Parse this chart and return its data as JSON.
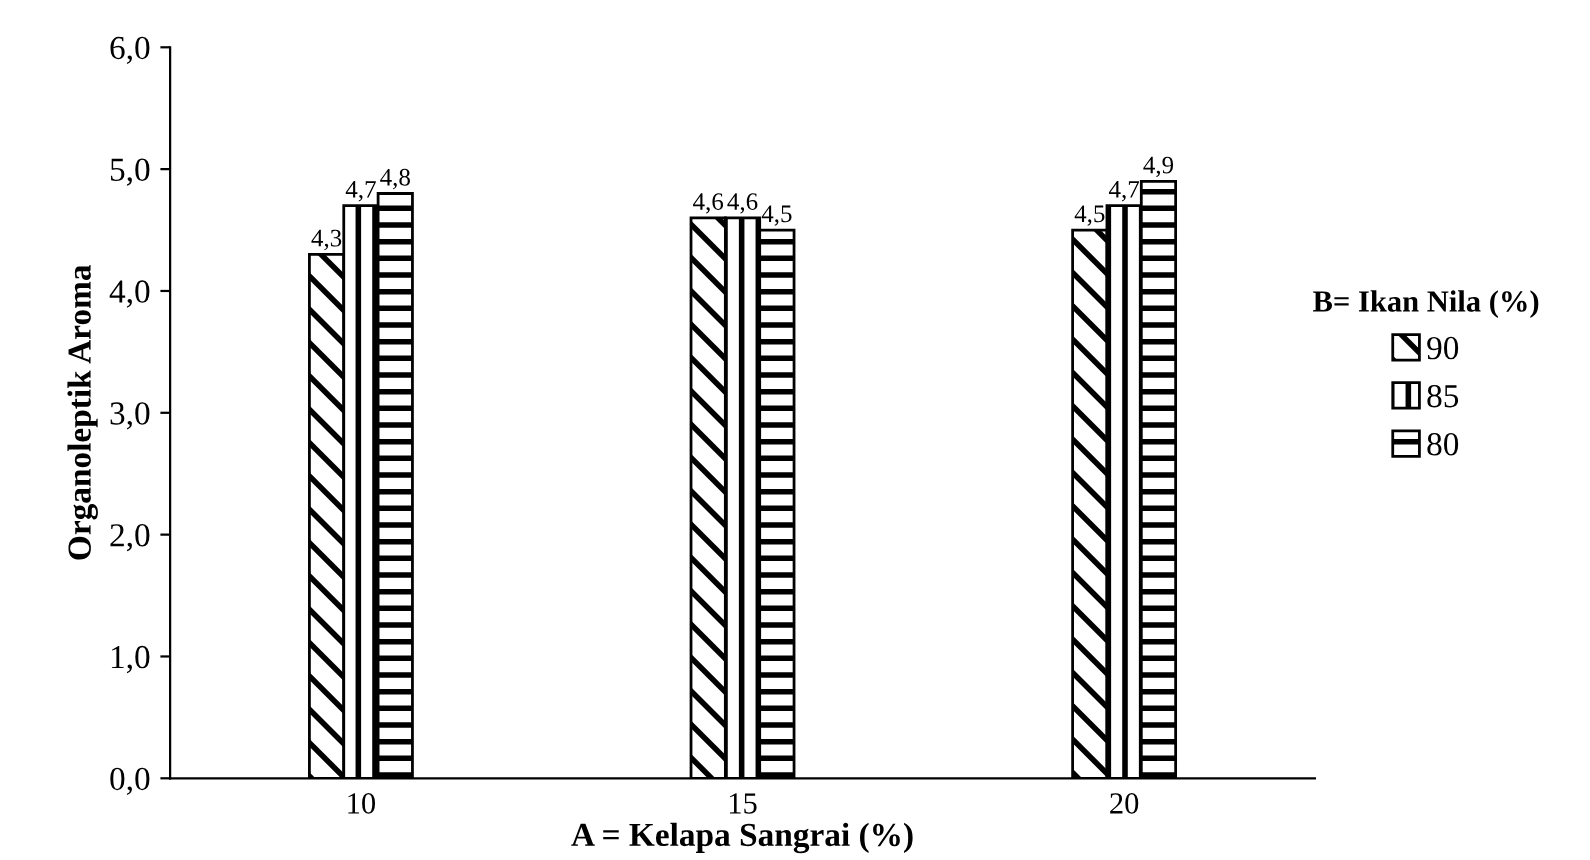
{
  "chart_data": {
    "type": "bar",
    "xlabel": "A = Kelapa Sangrai (%)",
    "ylabel": "Organoleptik Aroma",
    "legend_title": "B= Ikan Nila (%)",
    "categories": [
      "10",
      "15",
      "20"
    ],
    "series": [
      {
        "name": "90",
        "color": "#000000",
        "values": [
          4.3,
          4.6,
          4.5
        ],
        "value_labels": [
          "4,3",
          "4,6",
          "4,5"
        ]
      },
      {
        "name": "85",
        "color": "#000000",
        "values": [
          4.7,
          4.6,
          4.7
        ],
        "value_labels": [
          "4,7",
          "4,6",
          "4,7"
        ]
      },
      {
        "name": "80",
        "color": "#000000",
        "values": [
          4.8,
          4.5,
          4.9
        ],
        "value_labels": [
          "4,8",
          "4,5",
          "4,9"
        ]
      }
    ],
    "ylim": [
      0,
      6
    ],
    "yticks": [
      {
        "value": 0,
        "label": "0,0"
      },
      {
        "value": 1,
        "label": "1,0"
      },
      {
        "value": 2,
        "label": "2,0"
      },
      {
        "value": 3,
        "label": "3,0"
      },
      {
        "value": 4,
        "label": "4,0"
      },
      {
        "value": 5,
        "label": "5,0"
      },
      {
        "value": 6,
        "label": "6,0"
      }
    ],
    "grid": false,
    "legend": "right"
  }
}
